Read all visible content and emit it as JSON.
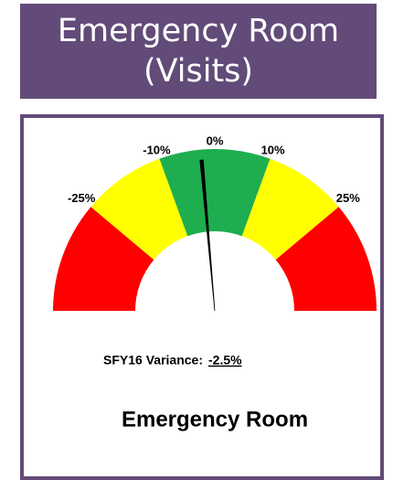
{
  "chart_data": {
    "type": "gauge",
    "title": "Emergency Room (Visits)",
    "caption": "SFY16 Variance:",
    "value": -2.5,
    "value_label": "-2.5%",
    "footer": "Emergency Room",
    "xlim": [
      -45,
      45
    ],
    "xticks": [
      {
        "value": -25,
        "label": "-25%"
      },
      {
        "value": -10,
        "label": "-10%"
      },
      {
        "value": 0,
        "label": "0%"
      },
      {
        "value": 10,
        "label": "10%"
      },
      {
        "value": 25,
        "label": "25%"
      }
    ],
    "bands": [
      {
        "from": -45,
        "to": -25,
        "color": "#ff0000"
      },
      {
        "from": -25,
        "to": -10,
        "color": "#ffff00"
      },
      {
        "from": -10,
        "to": 10,
        "color": "#1fae4f"
      },
      {
        "from": 10,
        "to": 25,
        "color": "#ffff00"
      },
      {
        "from": 25,
        "to": 45,
        "color": "#ff0000"
      }
    ],
    "needle_color": "#000000"
  }
}
